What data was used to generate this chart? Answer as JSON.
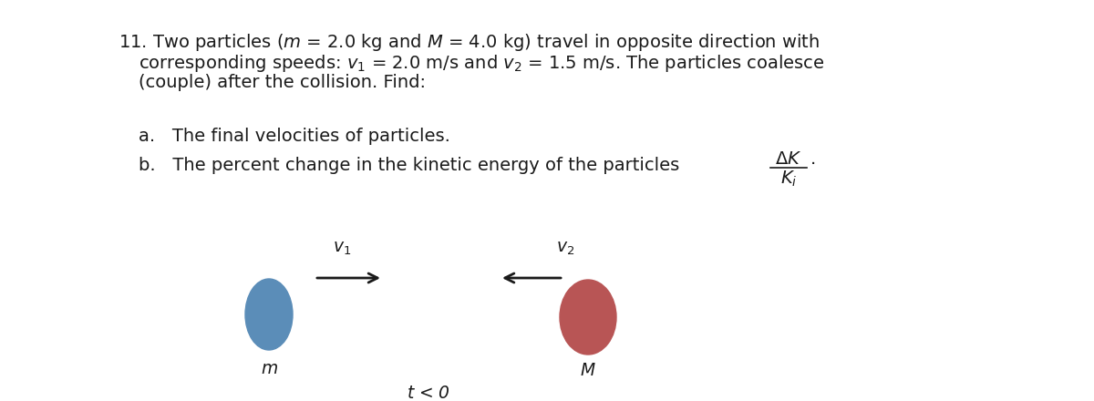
{
  "background_color": "#ffffff",
  "text_color": "#1a1a1a",
  "problem_text_line1": "11. Two particles ($m$ = 2.0 kg and $M$ = 4.0 kg) travel in opposite direction with",
  "problem_text_line2": "    corresponding speeds: $v_1$ = 2.0 m/s and $v_2$ = 1.5 m/s. The particles coalesce",
  "problem_text_line3": "    (couple) after the collision. Find:",
  "part_a": "a.   The final velocities of particles.",
  "part_b_prefix": "b.   The percent change in the kinetic energy of the particles",
  "diagram_label_t": "$t$ < 0",
  "label_m": "$m$",
  "label_M": "$M$",
  "label_v1": "$v_1$",
  "label_v2": "$v_2$",
  "ball_m_color": "#5B8DB8",
  "ball_M_color": "#B85555",
  "text_fontsize": 14.0,
  "label_fontsize": 13.5,
  "diagram_fontsize": 13.5
}
